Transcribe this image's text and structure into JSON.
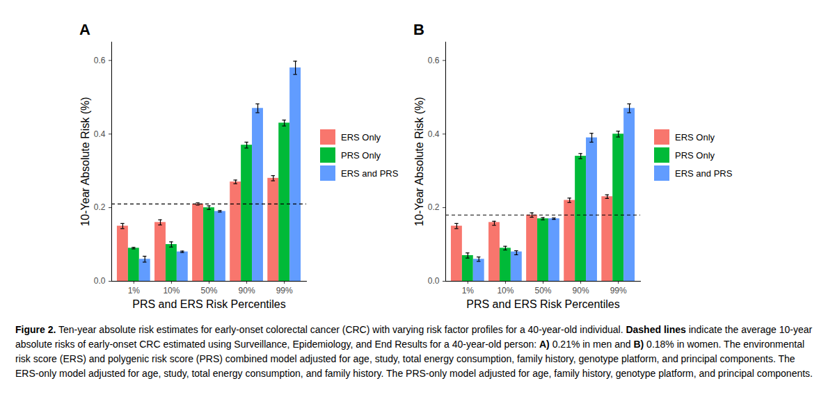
{
  "chart_data": [
    {
      "type": "bar",
      "title": "A",
      "x_label": "PRS and ERS Risk Percentiles",
      "y_label": "10-Year Absolute Risk (%)",
      "categories": [
        "1%",
        "10%",
        "50%",
        "90%",
        "99%"
      ],
      "series": [
        {
          "name": "ERS Only",
          "color": "#F8766D",
          "values": [
            0.15,
            0.16,
            0.21,
            0.27,
            0.28
          ],
          "error_low": [
            0.143,
            0.153,
            0.207,
            0.265,
            0.273
          ],
          "error_high": [
            0.157,
            0.167,
            0.213,
            0.275,
            0.287
          ]
        },
        {
          "name": "PRS Only",
          "color": "#00BA38",
          "values": [
            0.09,
            0.1,
            0.2,
            0.37,
            0.43
          ],
          "error_low": [
            0.088,
            0.093,
            0.195,
            0.362,
            0.422
          ],
          "error_high": [
            0.092,
            0.107,
            0.205,
            0.378,
            0.438
          ]
        },
        {
          "name": "ERS and PRS",
          "color": "#619CFF",
          "values": [
            0.06,
            0.08,
            0.19,
            0.47,
            0.58
          ],
          "error_low": [
            0.052,
            0.078,
            0.188,
            0.458,
            0.562
          ],
          "error_high": [
            0.068,
            0.082,
            0.192,
            0.482,
            0.598
          ]
        }
      ],
      "reference_line": 0.21,
      "ylim": [
        0,
        0.65
      ],
      "yticks": [
        {
          "value": 0,
          "label": "0.0"
        },
        0.2,
        0.4,
        0.6
      ],
      "legend": "right"
    },
    {
      "type": "bar",
      "title": "B",
      "x_label": "PRS and ERS Risk Percentiles",
      "y_label": "10-Year Absolute Risk (%)",
      "categories": [
        "1%",
        "10%",
        "50%",
        "90%",
        "99%"
      ],
      "series": [
        {
          "name": "ERS Only",
          "color": "#F8766D",
          "values": [
            0.15,
            0.16,
            0.18,
            0.22,
            0.23
          ],
          "error_low": [
            0.143,
            0.152,
            0.174,
            0.214,
            0.225
          ],
          "error_high": [
            0.157,
            0.163,
            0.186,
            0.226,
            0.235
          ]
        },
        {
          "name": "PRS Only",
          "color": "#00BA38",
          "values": [
            0.07,
            0.09,
            0.17,
            0.34,
            0.4
          ],
          "error_low": [
            0.063,
            0.085,
            0.167,
            0.333,
            0.392
          ],
          "error_high": [
            0.077,
            0.095,
            0.173,
            0.347,
            0.408
          ]
        },
        {
          "name": "ERS and PRS",
          "color": "#619CFF",
          "values": [
            0.06,
            0.08,
            0.17,
            0.39,
            0.47
          ],
          "error_low": [
            0.054,
            0.072,
            0.168,
            0.378,
            0.458
          ],
          "error_high": [
            0.066,
            0.083,
            0.172,
            0.402,
            0.482
          ]
        }
      ],
      "reference_line": 0.18,
      "ylim": [
        0,
        0.65
      ],
      "yticks": [
        {
          "value": 0,
          "label": "0.0"
        },
        0.2,
        0.4,
        0.6
      ],
      "legend": "right"
    }
  ],
  "caption": [
    {
      "text": "Figure 2.",
      "bold": true
    },
    {
      "text": " Ten-year absolute risk estimates for early-onset colorectal cancer (CRC) with varying risk factor profiles for a 40-year-old individual. ",
      "bold": false
    },
    {
      "text": "Dashed lines",
      "bold": true
    },
    {
      "text": " indicate the average 10-year absolute risks of early-onset CRC estimated using Surveillance, Epidemiology, and End Results for a 40-year-old person: ",
      "bold": false
    },
    {
      "text": "A)",
      "bold": true
    },
    {
      "text": " 0.21% in men and ",
      "bold": false
    },
    {
      "text": "B)",
      "bold": true
    },
    {
      "text": " 0.18% in women. The environmental risk score (ERS) and polygenic risk score (PRS) combined model adjusted for age, study, total energy consumption, family history, genotype platform, and principal components. The ERS-only model adjusted for age, study, total energy consumption, and family history. The PRS-only model adjusted for age, family history, genotype platform, and principal components.",
      "bold": false
    }
  ]
}
